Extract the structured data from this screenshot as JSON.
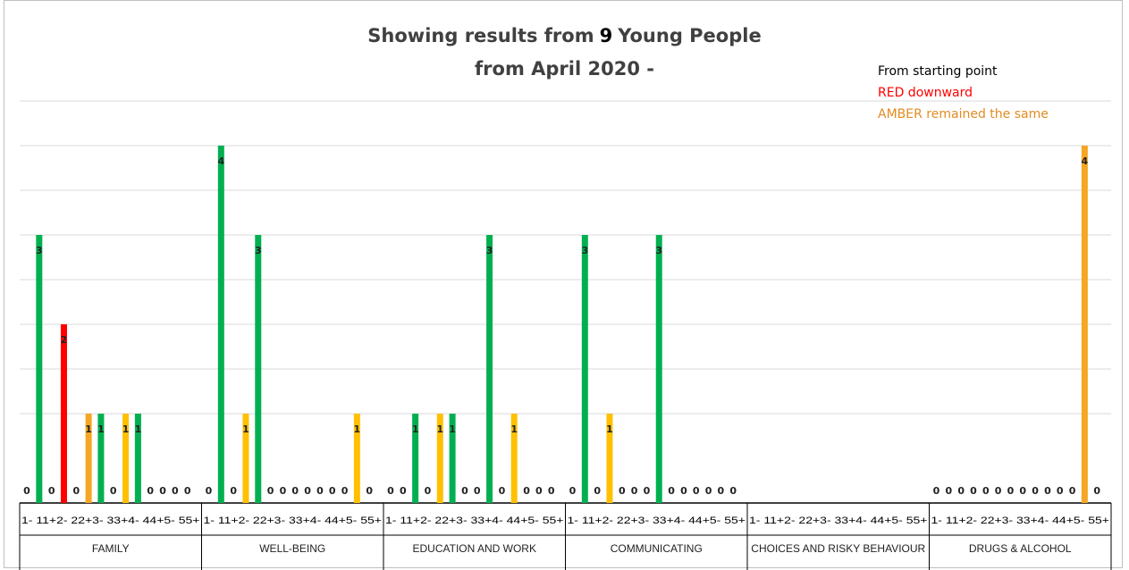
{
  "title": {
    "line1_before": "Showing results from",
    "count": "9",
    "line1_after": "Young People",
    "line2": "from April 2020 -"
  },
  "legend": {
    "black": "From  starting point",
    "red": "RED  downward",
    "amber": "AMBER remained the same"
  },
  "colors": {
    "green": "#00b050",
    "red": "#ff0000",
    "amber": "#ffc000",
    "orange": "#f5a623",
    "grid": "#d9d9d9",
    "axis": "#000000"
  },
  "chart_data": {
    "type": "bar",
    "ylim": [
      0,
      4
    ],
    "grid": true,
    "sections": [
      {
        "name": "FAMILY",
        "bars": [
          {
            "label": "1- 1",
            "value": 0,
            "color": "green"
          },
          {
            "label": "1+",
            "value": 3,
            "color": "green"
          },
          {
            "label": "2- 2",
            "value": 0,
            "color": "green"
          },
          {
            "label": "2+",
            "value": 2,
            "color": "red"
          },
          {
            "label": "3- 3",
            "value": 0,
            "color": "green"
          },
          {
            "label": "3+",
            "value": 1,
            "color": "orange"
          },
          {
            "label": "4- 4",
            "value": 1,
            "color": "green"
          },
          {
            "label": "4+",
            "value": 0,
            "color": "green"
          },
          {
            "label": "5- 5",
            "value": 1,
            "color": "amber"
          },
          {
            "label": "5+",
            "value": 1,
            "color": "green"
          },
          {
            "label": "",
            "value": 0,
            "color": "green"
          },
          {
            "label": "",
            "value": 0,
            "color": "green"
          },
          {
            "label": "",
            "value": 0,
            "color": "green"
          },
          {
            "label": "",
            "value": 0,
            "color": "green"
          }
        ]
      },
      {
        "name": "WELL-BEING",
        "bars": [
          {
            "label": "1- 1",
            "value": 0,
            "color": "green"
          },
          {
            "label": "1+",
            "value": 4,
            "color": "green"
          },
          {
            "label": "2- 2",
            "value": 0,
            "color": "green"
          },
          {
            "label": "2+",
            "value": 1,
            "color": "amber"
          },
          {
            "label": "3- 3",
            "value": 3,
            "color": "green"
          },
          {
            "label": "3+",
            "value": 0,
            "color": "green"
          },
          {
            "label": "4- 4",
            "value": 0,
            "color": "green"
          },
          {
            "label": "4+",
            "value": 0,
            "color": "green"
          },
          {
            "label": "5- 5",
            "value": 0,
            "color": "green"
          },
          {
            "label": "5+",
            "value": 0,
            "color": "green"
          },
          {
            "label": "",
            "value": 0,
            "color": "green"
          },
          {
            "label": "",
            "value": 0,
            "color": "green"
          },
          {
            "label": "",
            "value": 1,
            "color": "amber"
          },
          {
            "label": "",
            "value": 0,
            "color": "green"
          }
        ]
      },
      {
        "name": "EDUCATION AND WORK",
        "bars": [
          {
            "label": "1- 1",
            "value": 0,
            "color": "green"
          },
          {
            "label": "1+",
            "value": 0,
            "color": "green"
          },
          {
            "label": "2- 2",
            "value": 1,
            "color": "green"
          },
          {
            "label": "2+",
            "value": 0,
            "color": "green"
          },
          {
            "label": "3- 3",
            "value": 1,
            "color": "amber"
          },
          {
            "label": "3+",
            "value": 1,
            "color": "green"
          },
          {
            "label": "4- 4",
            "value": 0,
            "color": "green"
          },
          {
            "label": "4+",
            "value": 0,
            "color": "green"
          },
          {
            "label": "5- 5",
            "value": 3,
            "color": "green"
          },
          {
            "label": "5+",
            "value": 0,
            "color": "green"
          },
          {
            "label": "",
            "value": 1,
            "color": "amber"
          },
          {
            "label": "",
            "value": 0,
            "color": "green"
          },
          {
            "label": "",
            "value": 0,
            "color": "green"
          },
          {
            "label": "",
            "value": 0,
            "color": "green"
          }
        ]
      },
      {
        "name": "COMMUNICATING",
        "bars": [
          {
            "label": "1- 1",
            "value": 0,
            "color": "green"
          },
          {
            "label": "1+",
            "value": 3,
            "color": "green"
          },
          {
            "label": "2- 2",
            "value": 0,
            "color": "green"
          },
          {
            "label": "2+",
            "value": 1,
            "color": "amber"
          },
          {
            "label": "3- 3",
            "value": 0,
            "color": "green"
          },
          {
            "label": "3+",
            "value": 0,
            "color": "green"
          },
          {
            "label": "4- 4",
            "value": 0,
            "color": "green"
          },
          {
            "label": "4+",
            "value": 3,
            "color": "green"
          },
          {
            "label": "5- 5",
            "value": 0,
            "color": "green"
          },
          {
            "label": "5+",
            "value": 0,
            "color": "green"
          },
          {
            "label": "",
            "value": 0,
            "color": "green"
          },
          {
            "label": "",
            "value": 0,
            "color": "green"
          },
          {
            "label": "",
            "value": 0,
            "color": "green"
          },
          {
            "label": "",
            "value": 0,
            "color": "green"
          }
        ]
      },
      {
        "name": "CHOICES AND RISKY BEHAVIOUR",
        "bars": []
      },
      {
        "name": "DRUGS & ALCOHOL",
        "bars": [
          {
            "label": "1- 1",
            "value": 0,
            "color": "green"
          },
          {
            "label": "1+",
            "value": 0,
            "color": "green"
          },
          {
            "label": "2- 2",
            "value": 0,
            "color": "green"
          },
          {
            "label": "2+",
            "value": 0,
            "color": "green"
          },
          {
            "label": "3- 3",
            "value": 0,
            "color": "green"
          },
          {
            "label": "3+",
            "value": 0,
            "color": "green"
          },
          {
            "label": "4- 4",
            "value": 0,
            "color": "green"
          },
          {
            "label": "4+",
            "value": 0,
            "color": "green"
          },
          {
            "label": "5- 5",
            "value": 0,
            "color": "green"
          },
          {
            "label": "5+",
            "value": 0,
            "color": "green"
          },
          {
            "label": "",
            "value": 0,
            "color": "green"
          },
          {
            "label": "",
            "value": 0,
            "color": "green"
          },
          {
            "label": "",
            "value": 4,
            "color": "orange"
          },
          {
            "label": "",
            "value": 0,
            "color": "green"
          }
        ]
      }
    ],
    "tick_labels": [
      "1- 11+2- 22+3- 33+4- 44+5- 55+",
      "1- 11+2- 22+3- 33+4- 44+5- 55+",
      "1- 11+2- 22+3- 33+4- 44+5- 55+",
      "1- 11+2- 22+3- 33+4- 44+5- 55+",
      "1- 11+2- 22+3- 33+4- 44+5- 55+",
      "1- 11+2- 22+3- 33+4- 44+5- 55+"
    ]
  }
}
